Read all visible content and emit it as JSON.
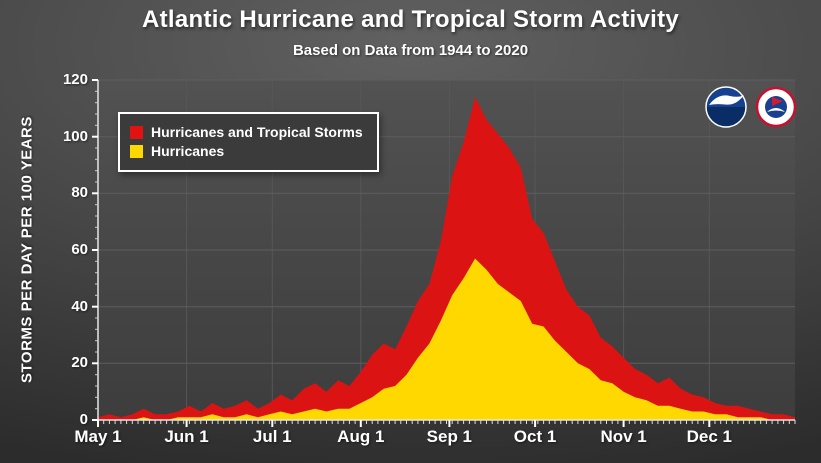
{
  "title": "Atlantic Hurricane and Tropical Storm Activity",
  "subtitle": "Based on Data from 1944 to 2020",
  "y_axis_label": "STORMS PER DAY PER 100 YEARS",
  "legend": [
    {
      "label": "Hurricanes and Tropical Storms",
      "color": "#e01212"
    },
    {
      "label": "Hurricanes",
      "color": "#ffd800"
    }
  ],
  "logos": [
    {
      "name": "noaa-logo"
    },
    {
      "name": "nws-logo"
    }
  ],
  "colors": {
    "combined_area": "#dc1313",
    "hurricane_area": "#ffd800",
    "axis": "#e6e6e6",
    "gridline": "#5e5e5e",
    "text": "#ffffff"
  },
  "chart_data": {
    "type": "area",
    "title": "Atlantic Hurricane and Tropical Storm Activity",
    "subtitle": "Based on Data from 1944 to 2020",
    "xlabel": "",
    "ylabel": "STORMS PER DAY PER 100 YEARS",
    "ylim": [
      0,
      120
    ],
    "y_ticks": [
      0,
      20,
      40,
      60,
      80,
      100,
      120
    ],
    "x_range": [
      0,
      244
    ],
    "x_unit": "days since May 1",
    "x_tick_labels": [
      "May 1",
      "Jun 1",
      "Jul 1",
      "Aug 1",
      "Sep 1",
      "Oct 1",
      "Nov 1",
      "Dec 1"
    ],
    "x_tick_positions": [
      0,
      31,
      61,
      92,
      123,
      153,
      184,
      214
    ],
    "grid": true,
    "legend_position": "upper-left",
    "x_days": [
      0,
      4,
      8,
      12,
      16,
      20,
      24,
      28,
      32,
      36,
      40,
      44,
      48,
      52,
      56,
      60,
      64,
      68,
      72,
      76,
      80,
      84,
      88,
      92,
      96,
      100,
      104,
      108,
      112,
      116,
      120,
      124,
      128,
      132,
      136,
      140,
      144,
      148,
      152,
      156,
      160,
      164,
      168,
      172,
      176,
      180,
      184,
      188,
      192,
      196,
      200,
      204,
      208,
      212,
      216,
      220,
      224,
      228,
      232,
      236,
      240,
      244
    ],
    "series": [
      {
        "name": "Hurricanes and Tropical Storms",
        "color": "#dc1313",
        "values": [
          1,
          2,
          1,
          2,
          4,
          2,
          2,
          3,
          5,
          3,
          6,
          4,
          5,
          7,
          4,
          6,
          9,
          7,
          11,
          13,
          10,
          14,
          12,
          17,
          23,
          27,
          25,
          33,
          42,
          48,
          63,
          86,
          98,
          114,
          106,
          101,
          96,
          89,
          71,
          66,
          56,
          46,
          40,
          37,
          29,
          26,
          22,
          18,
          16,
          13,
          15,
          11,
          9,
          8,
          6,
          5,
          5,
          4,
          3,
          2,
          2,
          1
        ]
      },
      {
        "name": "Hurricanes",
        "color": "#ffd800",
        "values": [
          0,
          0,
          0,
          0,
          1,
          0,
          0,
          1,
          1,
          1,
          2,
          1,
          1,
          2,
          1,
          2,
          3,
          2,
          3,
          4,
          3,
          4,
          4,
          6,
          8,
          11,
          12,
          16,
          22,
          27,
          35,
          44,
          50,
          57,
          53,
          48,
          45,
          42,
          34,
          33,
          28,
          24,
          20,
          18,
          14,
          13,
          10,
          8,
          7,
          5,
          5,
          4,
          3,
          3,
          2,
          2,
          1,
          1,
          1,
          0,
          0,
          0
        ]
      }
    ]
  }
}
